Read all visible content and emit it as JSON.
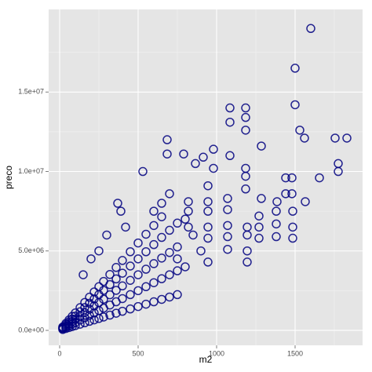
{
  "chart_data": {
    "type": "scatter",
    "x_label": "m2",
    "y_label": "preco",
    "color": "#000080",
    "xlim": [
      -70,
      1930
    ],
    "ylim": [
      -940000,
      20200000
    ],
    "xticks": [
      0,
      500,
      1000,
      1500
    ],
    "yticks": [
      {
        "value": 0,
        "label": "0.0e+00"
      },
      {
        "value": 5000000,
        "label": "5.0e+06"
      },
      {
        "value": 10000000,
        "label": "1.0e+07"
      },
      {
        "value": 15000000,
        "label": "1.5e+07"
      }
    ],
    "x_minor_ticks": [
      250,
      750,
      1250,
      1750
    ],
    "y_minor_ticks": [
      2500000,
      7500000,
      12500000,
      17500000
    ],
    "grid": true,
    "x": [
      20,
      20,
      20,
      20,
      20,
      40,
      40,
      40,
      40,
      40,
      60,
      60,
      60,
      60,
      60,
      80,
      80,
      80,
      80,
      80,
      100,
      100,
      100,
      100,
      100,
      130,
      130,
      130,
      130,
      130,
      160,
      160,
      160,
      160,
      160,
      190,
      190,
      190,
      190,
      190,
      220,
      220,
      220,
      220,
      220,
      250,
      250,
      250,
      250,
      250,
      280,
      280,
      280,
      280,
      280,
      320,
      320,
      320,
      320,
      320,
      360,
      360,
      360,
      360,
      360,
      400,
      400,
      400,
      400,
      400,
      450,
      450,
      450,
      450,
      450,
      500,
      500,
      500,
      500,
      500,
      550,
      550,
      550,
      550,
      550,
      600,
      600,
      600,
      600,
      600,
      650,
      650,
      650,
      650,
      650,
      700,
      700,
      700,
      700,
      750,
      750,
      750,
      750,
      370,
      390,
      420,
      300,
      250,
      200,
      150,
      1600,
      1500,
      1500,
      1085,
      1085,
      1185,
      1185,
      1185,
      1530,
      1560,
      1755,
      1830,
      1775,
      1775,
      1285,
      685,
      685,
      790,
      980,
      1085,
      915,
      865,
      530,
      980,
      1185,
      1185,
      1185,
      1440,
      1480,
      1440,
      1480,
      1655,
      1565,
      1385,
      1285,
      1270,
      1380,
      1380,
      1380,
      1485,
      1485,
      1485,
      1195,
      1195,
      1195,
      1195,
      1070,
      1070,
      1070,
      1070,
      1070,
      945,
      945,
      945,
      945,
      945,
      945,
      820,
      820,
      820,
      1270,
      1270,
      600,
      650,
      700,
      800,
      850,
      900,
      750,
      800
    ],
    "values": [
      60000,
      100000,
      140000,
      180000,
      220000,
      120000,
      200000,
      280000,
      360000,
      440000,
      180000,
      300000,
      420000,
      540000,
      660000,
      240000,
      400000,
      560000,
      720000,
      880000,
      300000,
      500000,
      700000,
      900000,
      1100000,
      390000,
      650000,
      910000,
      1170000,
      1430000,
      480000,
      800000,
      1120000,
      1440000,
      1760000,
      570000,
      950000,
      1330000,
      1710000,
      2090000,
      660000,
      1100000,
      1540000,
      1980000,
      2420000,
      750000,
      1250000,
      1750000,
      2250000,
      2750000,
      840000,
      1400000,
      1960000,
      2520000,
      3080000,
      960000,
      1600000,
      2240000,
      2880000,
      3520000,
      1080000,
      1800000,
      2520000,
      3240000,
      3960000,
      1200000,
      2000000,
      2800000,
      3600000,
      4400000,
      1350000,
      2250000,
      3150000,
      4050000,
      4950000,
      1500000,
      2500000,
      3500000,
      4500000,
      5500000,
      1650000,
      2750000,
      3850000,
      4950000,
      6050000,
      1800000,
      3000000,
      4200000,
      5400000,
      6600000,
      1950000,
      3250000,
      4550000,
      5850000,
      7150000,
      2100000,
      3500000,
      4900000,
      6300000,
      2250000,
      3750000,
      5250000,
      6750000,
      8000000,
      7500000,
      6500000,
      6000000,
      5000000,
      4500000,
      3500000,
      19000000,
      16500000,
      14200000,
      14000000,
      13100000,
      14000000,
      13400000,
      12600000,
      12600000,
      12100000,
      12100000,
      12100000,
      10500000,
      10000000,
      11600000,
      12000000,
      11100000,
      11100000,
      11400000,
      11000000,
      10900000,
      10500000,
      10000000,
      10200000,
      10200000,
      9700000,
      8900000,
      9600000,
      9600000,
      8600000,
      8600000,
      9600000,
      8100000,
      8100000,
      8300000,
      7200000,
      7500000,
      6700000,
      5900000,
      7500000,
      6500000,
      5800000,
      6500000,
      6000000,
      5000000,
      4300000,
      8300000,
      7600000,
      6600000,
      5900000,
      5100000,
      9100000,
      8100000,
      7500000,
      6500000,
      5800000,
      4300000,
      8100000,
      7500000,
      6500000,
      6500000,
      5800000,
      7500000,
      8000000,
      8600000,
      7000000,
      6000000,
      5000000,
      4500000,
      4000000
    ]
  }
}
